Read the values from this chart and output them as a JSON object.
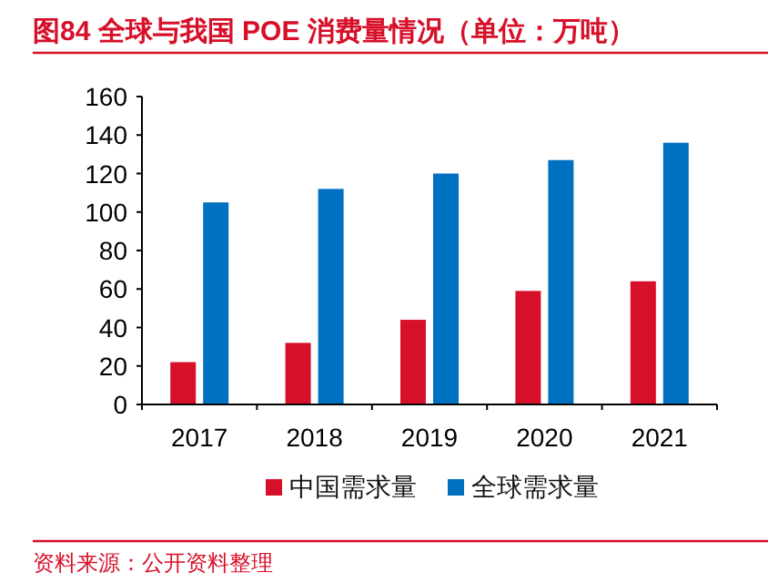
{
  "chart_data": {
    "type": "bar",
    "title": "图84  全球与我国 POE 消费量情况（单位：万吨）",
    "categories": [
      "2017",
      "2018",
      "2019",
      "2020",
      "2021"
    ],
    "series": [
      {
        "name": "中国需求量",
        "color": "#d7102a",
        "values": [
          22,
          32,
          44,
          59,
          64
        ]
      },
      {
        "name": "全球需求量",
        "color": "#0070c0",
        "values": [
          105,
          112,
          120,
          127,
          136
        ]
      }
    ],
    "ylim": [
      0,
      160
    ],
    "yticks": [
      0,
      20,
      40,
      60,
      80,
      100,
      120,
      140,
      160
    ],
    "legend": "bottom",
    "grid": false,
    "annotations": [
      "资料来源：公开资料整理"
    ]
  }
}
